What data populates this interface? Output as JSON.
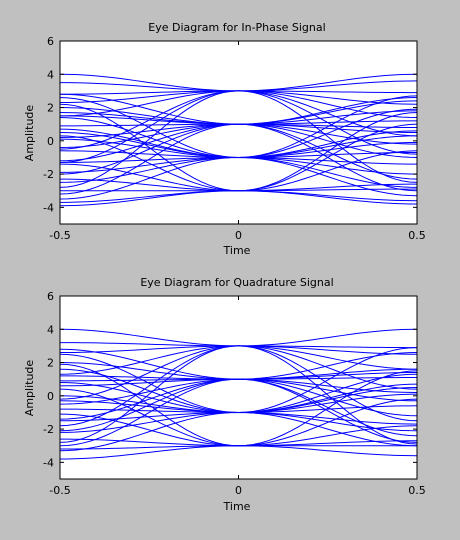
{
  "figure": {
    "background": "#c0c0c0",
    "axes_background": "#ffffff",
    "trace_color": "#0000ff"
  },
  "chart_data": [
    {
      "type": "line",
      "title": "Eye Diagram for In-Phase Signal",
      "xlabel": "Time",
      "ylabel": "Amplitude",
      "xlim": [
        -0.5,
        0.5
      ],
      "ylim": [
        -5,
        6
      ],
      "xticks": [
        -0.5,
        0,
        0.5
      ],
      "yticks": [
        -4,
        -2,
        0,
        2,
        4,
        6
      ],
      "xtick_labels": [
        "-0.5",
        "0",
        "0.5"
      ],
      "ytick_labels": [
        "-4",
        "-2",
        "0",
        "2",
        "4",
        "6"
      ],
      "grid": false,
      "trace": {
        "symbol_levels": [
          -3,
          -1,
          1,
          3
        ],
        "x": [
          -0.5,
          0,
          0.5
        ],
        "traces": [
          [
            4,
            3,
            4
          ],
          [
            3.5,
            3,
            3.6
          ],
          [
            2.8,
            3,
            2.9
          ],
          [
            2.3,
            3,
            2.2
          ],
          [
            1.5,
            3,
            1.4
          ],
          [
            -0.5,
            3,
            0.3
          ],
          [
            -1.3,
            3,
            -0.8
          ],
          [
            -2.8,
            3,
            -2.5
          ],
          [
            2.8,
            1,
            2.6
          ],
          [
            2.0,
            1,
            2.4
          ],
          [
            1.5,
            1,
            1.2
          ],
          [
            0.9,
            1,
            0.8
          ],
          [
            0.2,
            1,
            0.5
          ],
          [
            -0.4,
            1,
            -0.2
          ],
          [
            -1.2,
            1,
            -1.0
          ],
          [
            -2.0,
            1,
            -2.3
          ],
          [
            -3.2,
            1,
            -3.0
          ],
          [
            1.7,
            1,
            1.8
          ],
          [
            2.6,
            -1,
            2.7
          ],
          [
            1.4,
            -1,
            1.9
          ],
          [
            0.7,
            -1,
            0.6
          ],
          [
            0.1,
            -1,
            0.3
          ],
          [
            -0.6,
            -1,
            -0.7
          ],
          [
            -1.3,
            -1,
            -1.4
          ],
          [
            -1.9,
            -1,
            -2.0
          ],
          [
            -2.5,
            -1,
            -2.8
          ],
          [
            -3.5,
            -1,
            -3.3
          ],
          [
            0.5,
            -1,
            -0.1
          ],
          [
            2.2,
            -3,
            1.7
          ],
          [
            0.3,
            -3,
            1.0
          ],
          [
            -1.4,
            -3,
            -0.6
          ],
          [
            -2.3,
            -3,
            -2.6
          ],
          [
            -3.0,
            -3,
            -2.9
          ],
          [
            -3.7,
            -3,
            -3.6
          ],
          [
            -3.9,
            -3,
            -3.8
          ]
        ]
      }
    },
    {
      "type": "line",
      "title": "Eye Diagram for Quadrature Signal",
      "xlabel": "Time",
      "ylabel": "Amplitude",
      "xlim": [
        -0.5,
        0.5
      ],
      "ylim": [
        -5,
        6
      ],
      "xticks": [
        -0.5,
        0,
        0.5
      ],
      "yticks": [
        -4,
        -2,
        0,
        2,
        4,
        6
      ],
      "xtick_labels": [
        "-0.5",
        "0",
        "0.5"
      ],
      "ytick_labels": [
        "-4",
        "-2",
        "0",
        "2",
        "4",
        "6"
      ],
      "grid": false,
      "trace": {
        "symbol_levels": [
          -3,
          -1,
          1,
          3
        ],
        "x": [
          -0.5,
          0,
          0.5
        ],
        "traces": [
          [
            4,
            3,
            4
          ],
          [
            3.2,
            3,
            2.9
          ],
          [
            2.6,
            3,
            2.5
          ],
          [
            1.3,
            3,
            1.6
          ],
          [
            -0.2,
            3,
            0.4
          ],
          [
            -1.8,
            3,
            -1.5
          ],
          [
            -2.8,
            3,
            -2.9
          ],
          [
            2.8,
            1,
            2.6
          ],
          [
            2.0,
            1,
            1.6
          ],
          [
            1.2,
            1,
            1.4
          ],
          [
            0.6,
            1,
            0.2
          ],
          [
            -0.5,
            1,
            -0.3
          ],
          [
            -1.4,
            1,
            -1.2
          ],
          [
            -2.1,
            1,
            -2.4
          ],
          [
            -3.0,
            1,
            -2.8
          ],
          [
            0.9,
            1,
            1.1
          ],
          [
            2.5,
            -1,
            2.9
          ],
          [
            1.6,
            -1,
            1.3
          ],
          [
            0.8,
            -1,
            0.7
          ],
          [
            0.0,
            -1,
            0.1
          ],
          [
            -0.8,
            -1,
            -0.6
          ],
          [
            -1.5,
            -1,
            -1.7
          ],
          [
            -2.2,
            -1,
            -2.1
          ],
          [
            -3.3,
            -1,
            -3.0
          ],
          [
            -0.3,
            -1,
            0.5
          ],
          [
            1.9,
            -3,
            1.5
          ],
          [
            0.4,
            -3,
            -0.2
          ],
          [
            -1.1,
            -3,
            -1.8
          ],
          [
            -2.6,
            -3,
            -2.7
          ],
          [
            -3.2,
            -3,
            -3.0
          ],
          [
            -3.8,
            -3,
            -3.6
          ]
        ]
      }
    }
  ]
}
